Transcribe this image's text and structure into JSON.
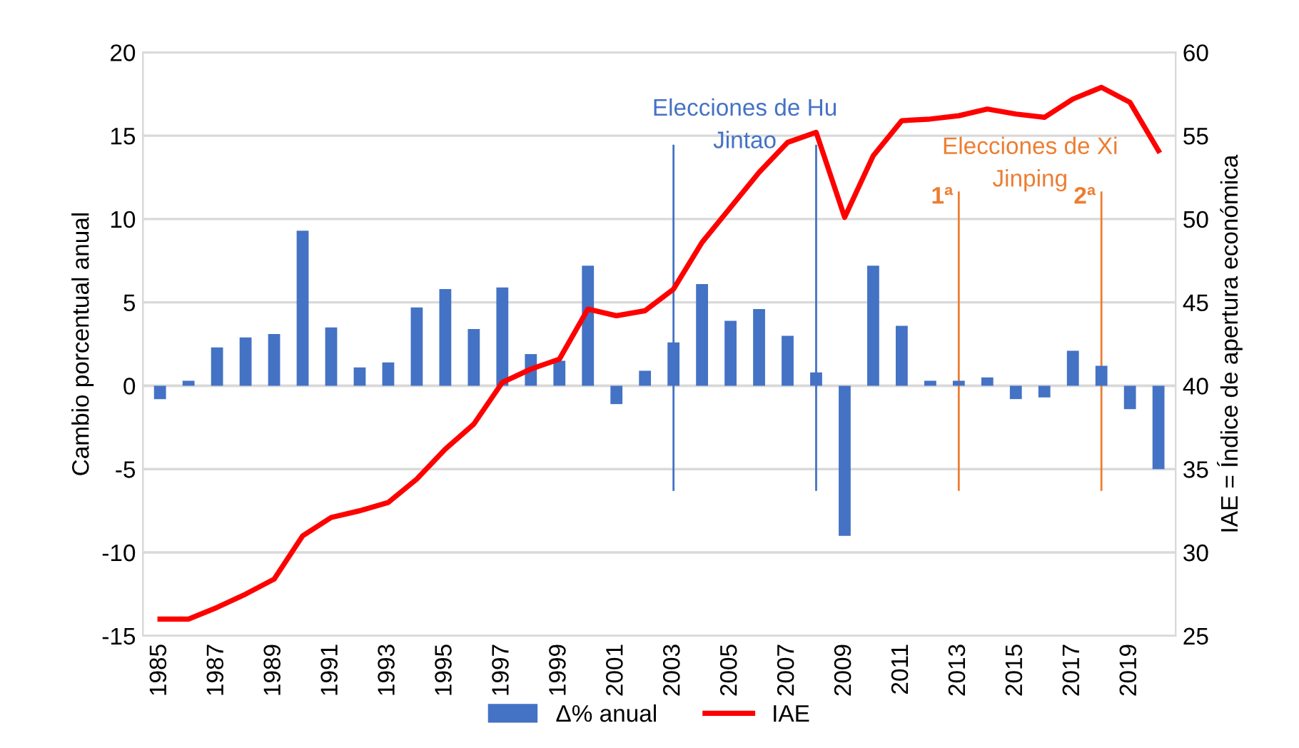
{
  "chart_data": {
    "type": "bar",
    "categories": [
      "1985",
      null,
      "1987",
      null,
      "1989",
      null,
      "1991",
      null,
      "1993",
      null,
      "1995",
      null,
      "1997",
      null,
      "1999",
      null,
      "2001",
      null,
      "2003",
      null,
      "2005",
      null,
      "2007",
      null,
      "2009",
      null,
      "2011",
      null,
      "2013",
      null,
      "2015",
      null,
      "2017",
      null,
      "2019",
      null
    ],
    "series": [
      {
        "name": "Δ% anual",
        "type": "bar",
        "color": "#4472c4",
        "values": [
          -0.8,
          0.3,
          2.3,
          2.9,
          3.1,
          9.3,
          3.5,
          1.1,
          1.4,
          4.7,
          5.8,
          3.4,
          5.9,
          1.9,
          1.5,
          7.2,
          -1.1,
          0.9,
          2.6,
          6.1,
          3.9,
          4.6,
          3.0,
          0.8,
          -9.0,
          7.2,
          3.6,
          0.3,
          0.3,
          0.5,
          -0.8,
          -0.7,
          2.1,
          1.2,
          -1.4,
          -5.0
        ]
      },
      {
        "name": "IAE",
        "type": "line",
        "axis": "y2",
        "color": "#ff0000",
        "values": [
          26.0,
          26.0,
          26.7,
          27.5,
          28.4,
          31.0,
          32.1,
          32.5,
          33.0,
          34.4,
          36.2,
          37.7,
          40.2,
          41.0,
          41.6,
          44.6,
          44.2,
          44.5,
          45.8,
          48.6,
          50.7,
          52.8,
          54.6,
          55.2,
          50.1,
          53.8,
          55.9,
          56.0,
          56.2,
          56.6,
          56.3,
          56.1,
          57.2,
          57.9,
          57.0,
          54.1
        ]
      }
    ],
    "ylabel": "Cambio porcentual anual",
    "y2label": "IAE = Índice de apertura económica",
    "ylim": [
      -15,
      20
    ],
    "yticks": [
      -15,
      -10,
      -5,
      0,
      5,
      10,
      15,
      20
    ],
    "y2lim": [
      25,
      60
    ],
    "y2ticks": [
      25,
      30,
      35,
      40,
      45,
      50,
      55,
      60
    ],
    "grid": "y",
    "legend": "bottom",
    "ref_lines": [
      {
        "axis": "x",
        "value": "2003",
        "label": null,
        "color": "#4472c4"
      },
      {
        "axis": "x",
        "value": null,
        "label": null,
        "color": "#4472c4"
      },
      {
        "axis": "x",
        "value": "2013",
        "label": "1ª",
        "color": "#ed7d31"
      },
      {
        "axis": "x",
        "value": null,
        "label": "2ª",
        "color": "#ed7d31"
      }
    ],
    "annotations": [
      "Elecciones de Hu\nJintao",
      "Elecciones de Xi\nJinping"
    ]
  }
}
